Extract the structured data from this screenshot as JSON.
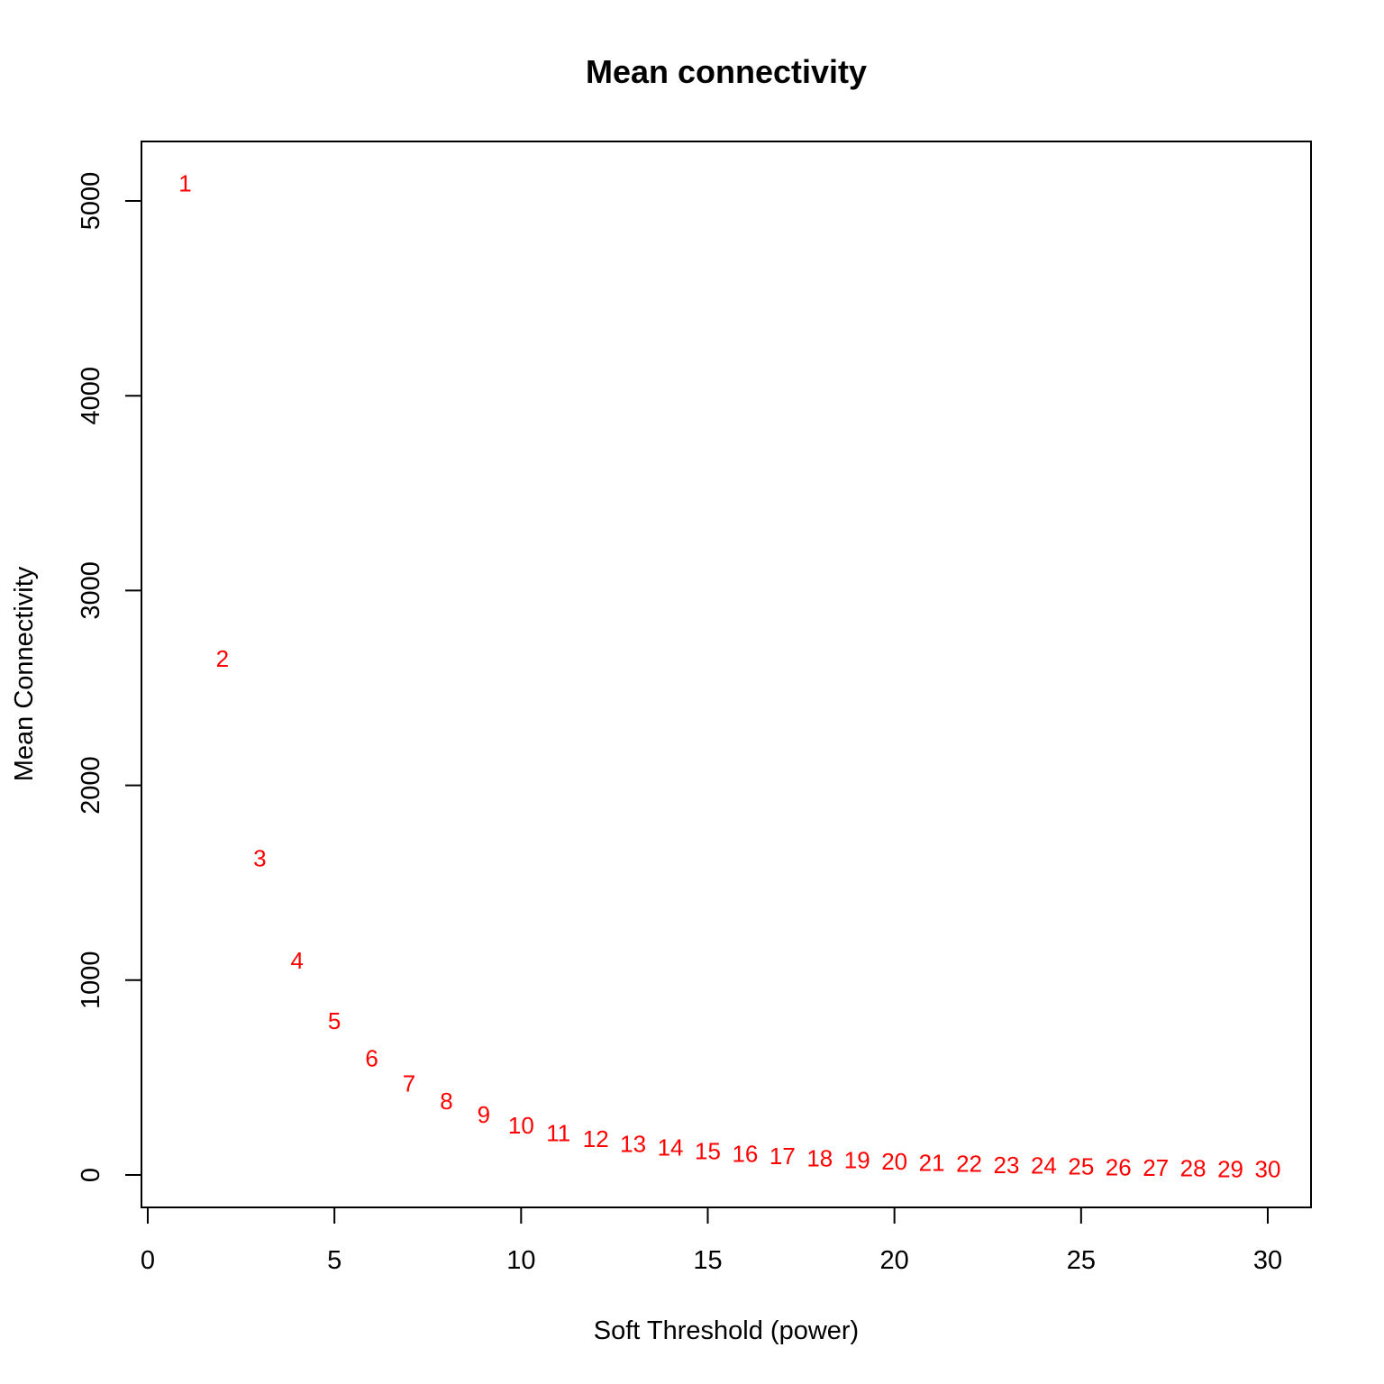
{
  "chart_data": {
    "type": "scatter",
    "title": "Mean connectivity",
    "xlabel": "Soft Threshold (power)",
    "ylabel": "Mean Connectivity",
    "xlim": [
      0,
      30
    ],
    "ylim": [
      0,
      5000
    ],
    "x_ticks": [
      0,
      5,
      10,
      15,
      20,
      25,
      30
    ],
    "y_ticks": [
      0,
      1000,
      2000,
      3000,
      4000,
      5000
    ],
    "grid": false,
    "legend": "none",
    "marker": "text-label",
    "point_color": "#ff0000",
    "points": [
      {
        "x": 1,
        "y": 5090,
        "label": "1"
      },
      {
        "x": 2,
        "y": 2650,
        "label": "2"
      },
      {
        "x": 3,
        "y": 1625,
        "label": "3"
      },
      {
        "x": 4,
        "y": 1100,
        "label": "4"
      },
      {
        "x": 5,
        "y": 790,
        "label": "5"
      },
      {
        "x": 6,
        "y": 600,
        "label": "6"
      },
      {
        "x": 7,
        "y": 470,
        "label": "7"
      },
      {
        "x": 8,
        "y": 380,
        "label": "8"
      },
      {
        "x": 9,
        "y": 310,
        "label": "9"
      },
      {
        "x": 10,
        "y": 255,
        "label": "10"
      },
      {
        "x": 11,
        "y": 215,
        "label": "11"
      },
      {
        "x": 12,
        "y": 185,
        "label": "12"
      },
      {
        "x": 13,
        "y": 160,
        "label": "13"
      },
      {
        "x": 14,
        "y": 140,
        "label": "14"
      },
      {
        "x": 15,
        "y": 122,
        "label": "15"
      },
      {
        "x": 16,
        "y": 108,
        "label": "16"
      },
      {
        "x": 17,
        "y": 96,
        "label": "17"
      },
      {
        "x": 18,
        "y": 86,
        "label": "18"
      },
      {
        "x": 19,
        "y": 77,
        "label": "19"
      },
      {
        "x": 20,
        "y": 70,
        "label": "20"
      },
      {
        "x": 21,
        "y": 63,
        "label": "21"
      },
      {
        "x": 22,
        "y": 57,
        "label": "22"
      },
      {
        "x": 23,
        "y": 52,
        "label": "23"
      },
      {
        "x": 24,
        "y": 48,
        "label": "24"
      },
      {
        "x": 25,
        "y": 44,
        "label": "25"
      },
      {
        "x": 26,
        "y": 40,
        "label": "26"
      },
      {
        "x": 27,
        "y": 37,
        "label": "27"
      },
      {
        "x": 28,
        "y": 34,
        "label": "28"
      },
      {
        "x": 29,
        "y": 31,
        "label": "29"
      },
      {
        "x": 30,
        "y": 29,
        "label": "30"
      }
    ]
  }
}
